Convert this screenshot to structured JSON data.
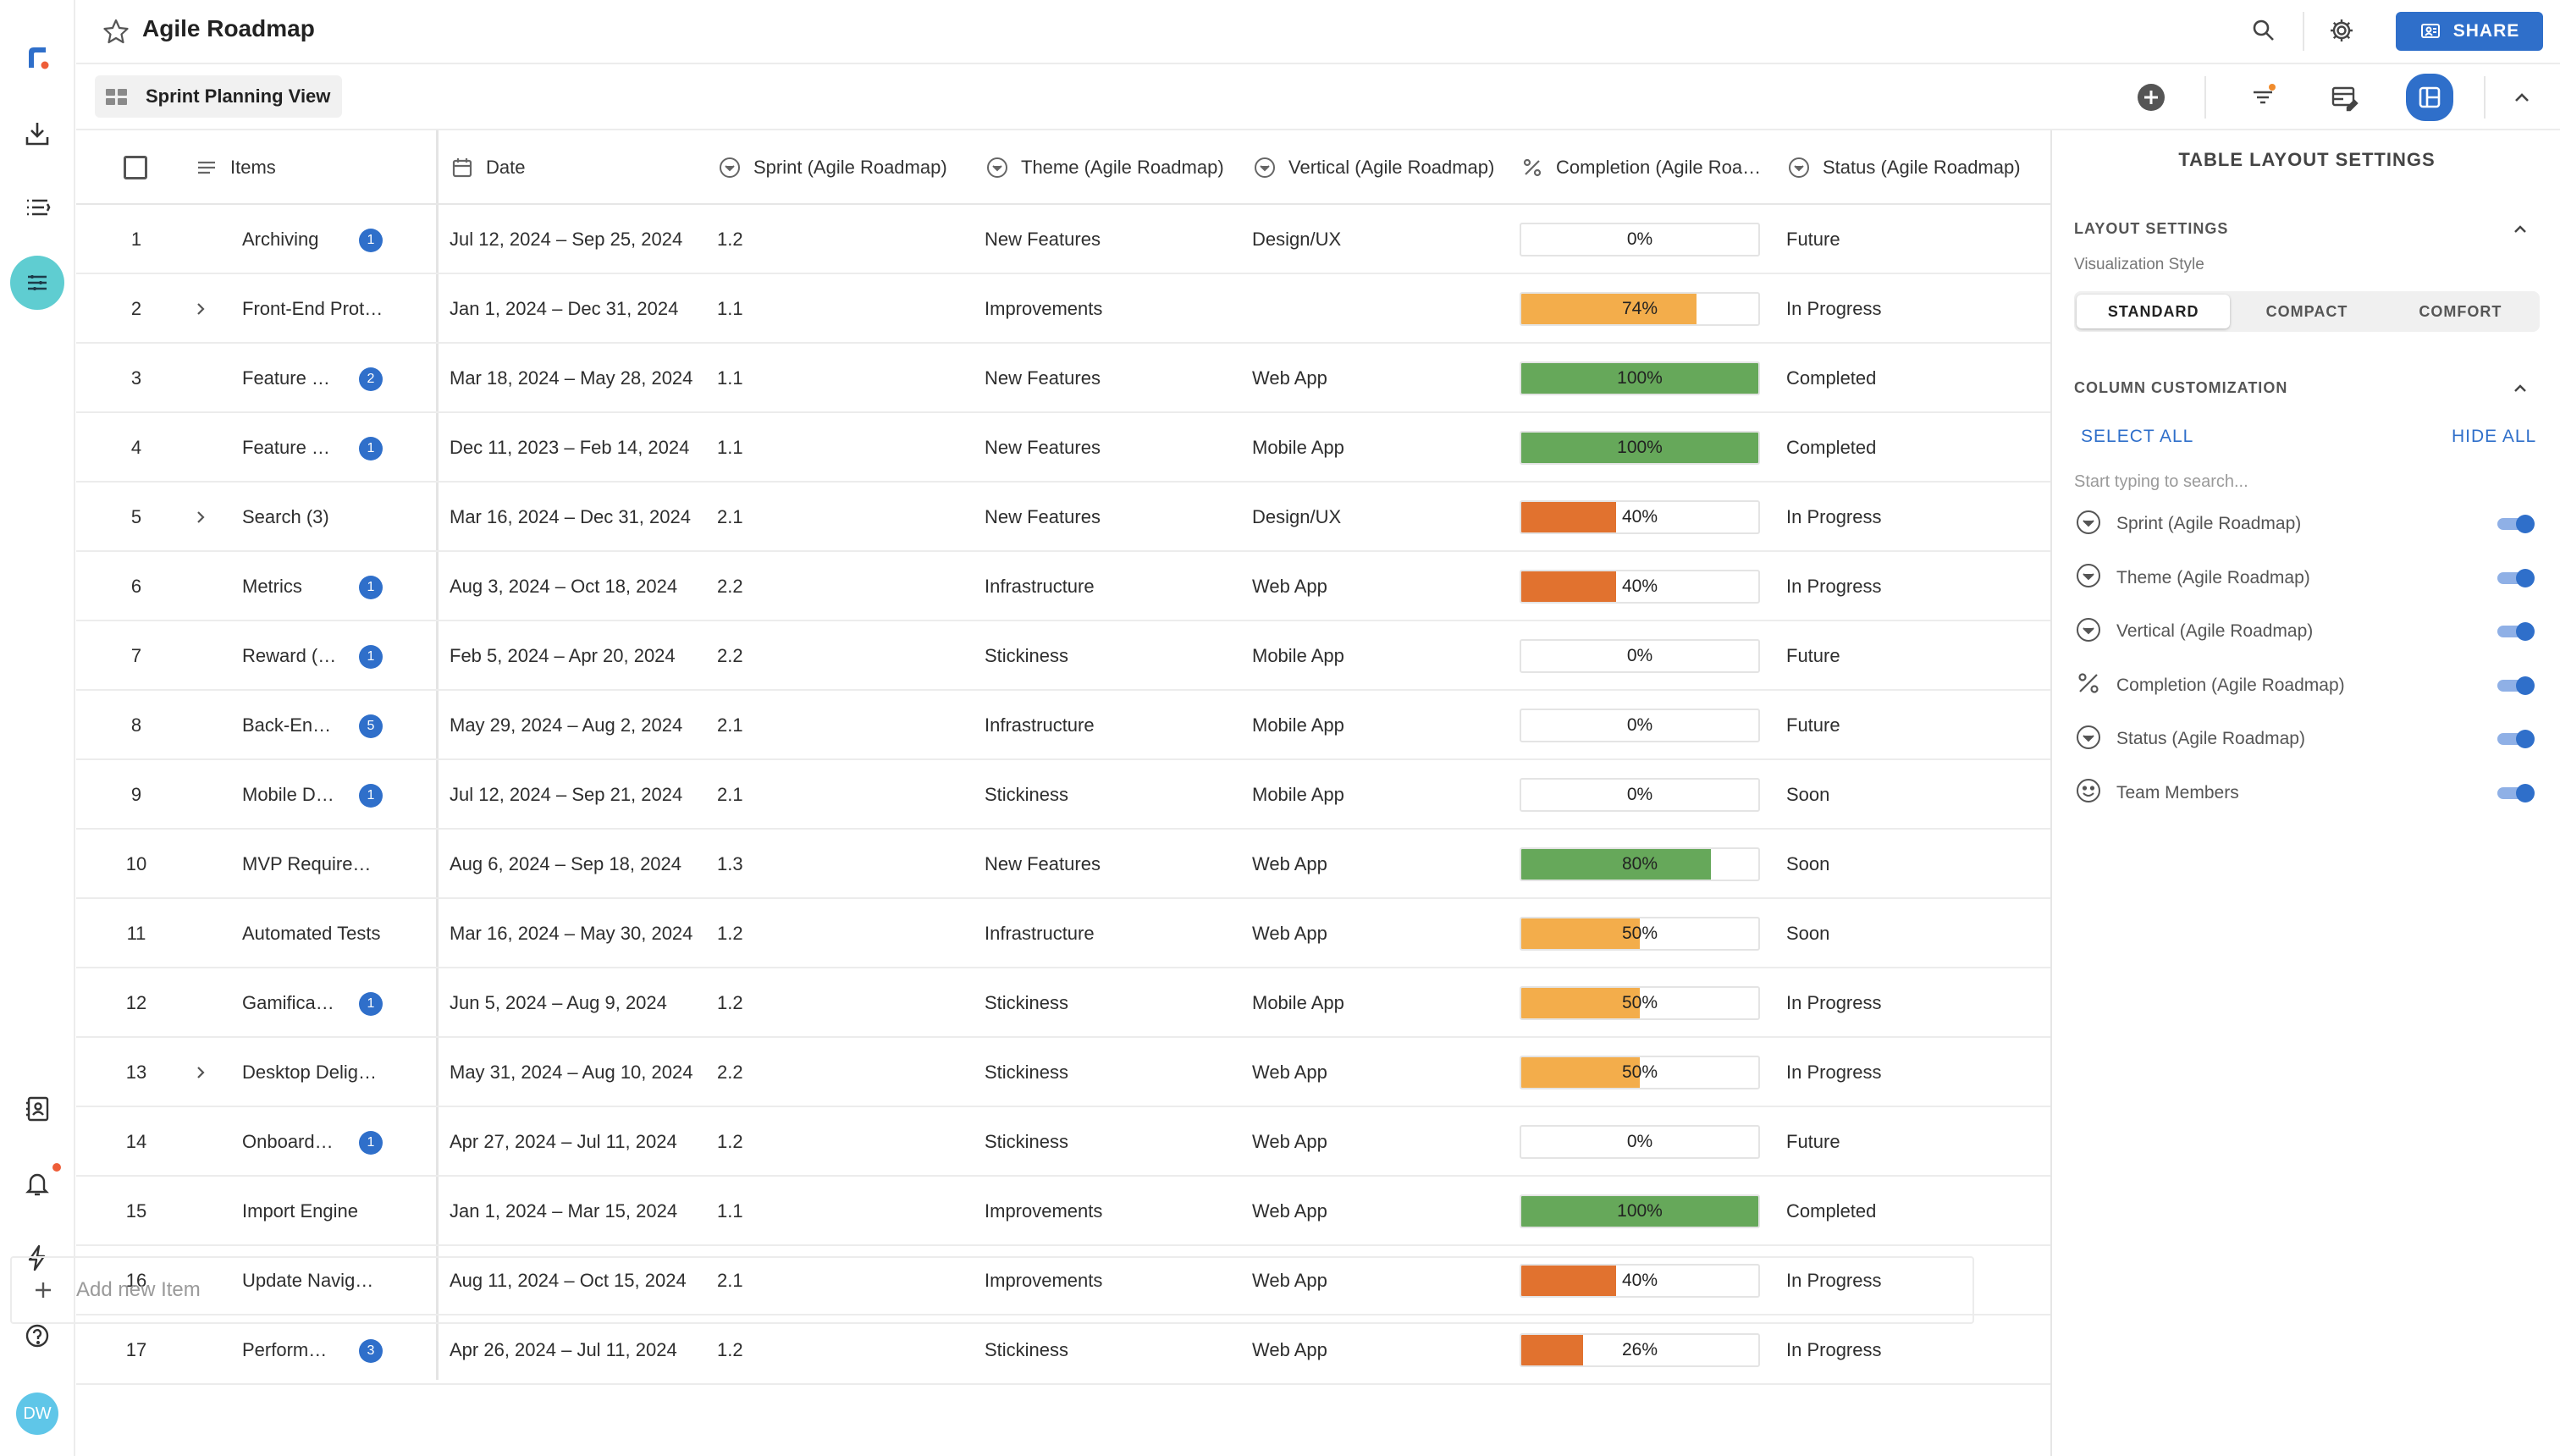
{
  "app": {
    "title": "Agile Roadmap",
    "view_name": "Sprint Planning View",
    "share_label": "SHARE",
    "user_initials": "DW"
  },
  "icons": {
    "rail": [
      "brand-logo-icon",
      "download-icon",
      "list-icon",
      "board-icon",
      "contacts-icon",
      "bell-icon",
      "lightning-icon",
      "help-icon"
    ],
    "header": [
      "star-icon",
      "search-icon",
      "gear-icon",
      "share-icon"
    ],
    "toolbar": [
      "add-icon",
      "filter-icon",
      "table-edit-icon",
      "layout-icon",
      "collapse-icon"
    ]
  },
  "colors": {
    "accent": "#2f6fca",
    "rail_active": "#5fcdd1",
    "bar_green": "#66a85a",
    "bar_orange_light": "#f3ad4b",
    "bar_orange_dark": "#e1722f",
    "notify_dot": "#ee5d38"
  },
  "table": {
    "headers": {
      "items": "Items",
      "date": "Date",
      "sprint": "Sprint (Agile Roadmap)",
      "theme": "Theme (Agile Roadmap)",
      "vertical": "Vertical (Agile Roadmap)",
      "completion": "Completion (Agile Roa…",
      "status": "Status (Agile Roadmap)"
    },
    "rows": [
      {
        "num": "1",
        "name": "Archiving",
        "badge": "1",
        "expand": false,
        "date": "Jul 12, 2024 – Sep 25, 2024",
        "sprint": "1.2",
        "theme": "New Features",
        "vertical": "Design/UX",
        "completion": 0,
        "completion_label": "0%",
        "status": "Future"
      },
      {
        "num": "2",
        "name": "Front-End Prot…",
        "badge": "",
        "expand": true,
        "date": "Jan 1, 2024 – Dec 31, 2024",
        "sprint": "1.1",
        "theme": "Improvements",
        "vertical": "",
        "completion": 74,
        "completion_label": "74%",
        "status": "In Progress"
      },
      {
        "num": "3",
        "name": "Feature …",
        "badge": "2",
        "expand": false,
        "date": "Mar 18, 2024 – May 28, 2024",
        "sprint": "1.1",
        "theme": "New Features",
        "vertical": "Web App",
        "completion": 100,
        "completion_label": "100%",
        "status": "Completed"
      },
      {
        "num": "4",
        "name": "Feature …",
        "badge": "1",
        "expand": false,
        "date": "Dec 11, 2023 – Feb 14, 2024",
        "sprint": "1.1",
        "theme": "New Features",
        "vertical": "Mobile App",
        "completion": 100,
        "completion_label": "100%",
        "status": "Completed"
      },
      {
        "num": "5",
        "name": "Search (3)",
        "badge": "",
        "expand": true,
        "date": "Mar 16, 2024 – Dec 31, 2024",
        "sprint": "2.1",
        "theme": "New Features",
        "vertical": "Design/UX",
        "completion": 40,
        "completion_label": "40%",
        "status": "In Progress"
      },
      {
        "num": "6",
        "name": "Metrics",
        "badge": "1",
        "expand": false,
        "date": "Aug 3, 2024 – Oct 18, 2024",
        "sprint": "2.2",
        "theme": "Infrastructure",
        "vertical": "Web App",
        "completion": 40,
        "completion_label": "40%",
        "status": "In Progress"
      },
      {
        "num": "7",
        "name": "Reward (…",
        "badge": "1",
        "expand": false,
        "date": "Feb 5, 2024 – Apr 20, 2024",
        "sprint": "2.2",
        "theme": "Stickiness",
        "vertical": "Mobile App",
        "completion": 0,
        "completion_label": "0%",
        "status": "Future"
      },
      {
        "num": "8",
        "name": "Back-En…",
        "badge": "5",
        "expand": false,
        "date": "May 29, 2024 – Aug 2, 2024",
        "sprint": "2.1",
        "theme": "Infrastructure",
        "vertical": "Mobile App",
        "completion": 0,
        "completion_label": "0%",
        "status": "Future"
      },
      {
        "num": "9",
        "name": "Mobile D…",
        "badge": "1",
        "expand": false,
        "date": "Jul 12, 2024 – Sep 21, 2024",
        "sprint": "2.1",
        "theme": "Stickiness",
        "vertical": "Mobile App",
        "completion": 0,
        "completion_label": "0%",
        "status": "Soon"
      },
      {
        "num": "10",
        "name": "MVP Require…",
        "badge": "",
        "expand": false,
        "date": "Aug 6, 2024 – Sep 18, 2024",
        "sprint": "1.3",
        "theme": "New Features",
        "vertical": "Web App",
        "completion": 80,
        "completion_label": "80%",
        "status": "Soon"
      },
      {
        "num": "11",
        "name": "Automated Tests",
        "badge": "",
        "expand": false,
        "date": "Mar 16, 2024 – May 30, 2024",
        "sprint": "1.2",
        "theme": "Infrastructure",
        "vertical": "Web App",
        "completion": 50,
        "completion_label": "50%",
        "status": "Soon"
      },
      {
        "num": "12",
        "name": "Gamifica…",
        "badge": "1",
        "expand": false,
        "date": "Jun 5, 2024 – Aug 9, 2024",
        "sprint": "1.2",
        "theme": "Stickiness",
        "vertical": "Mobile App",
        "completion": 50,
        "completion_label": "50%",
        "status": "In Progress"
      },
      {
        "num": "13",
        "name": "Desktop Delig…",
        "badge": "",
        "expand": true,
        "date": "May 31, 2024 – Aug 10, 2024",
        "sprint": "2.2",
        "theme": "Stickiness",
        "vertical": "Web App",
        "completion": 50,
        "completion_label": "50%",
        "status": "In Progress"
      },
      {
        "num": "14",
        "name": "Onboard…",
        "badge": "1",
        "expand": false,
        "date": "Apr 27, 2024 – Jul 11, 2024",
        "sprint": "1.2",
        "theme": "Stickiness",
        "vertical": "Web App",
        "completion": 0,
        "completion_label": "0%",
        "status": "Future"
      },
      {
        "num": "15",
        "name": "Import Engine",
        "badge": "",
        "expand": false,
        "date": "Jan 1, 2024 – Mar 15, 2024",
        "sprint": "1.1",
        "theme": "Improvements",
        "vertical": "Web App",
        "completion": 100,
        "completion_label": "100%",
        "status": "Completed"
      },
      {
        "num": "16",
        "name": "Update Navig…",
        "badge": "",
        "expand": false,
        "date": "Aug 11, 2024 – Oct 15, 2024",
        "sprint": "2.1",
        "theme": "Improvements",
        "vertical": "Web App",
        "completion": 40,
        "completion_label": "40%",
        "status": "In Progress"
      },
      {
        "num": "17",
        "name": "Perform…",
        "badge": "3",
        "expand": false,
        "date": "Apr 26, 2024 – Jul 11, 2024",
        "sprint": "1.2",
        "theme": "Stickiness",
        "vertical": "Web App",
        "completion": 26,
        "completion_label": "26%",
        "status": "In Progress"
      }
    ],
    "add_placeholder": "Add new Item"
  },
  "panel": {
    "title": "TABLE LAYOUT SETTINGS",
    "layout_section": "LAYOUT SETTINGS",
    "viz_label": "Visualization Style",
    "styles": [
      "STANDARD",
      "COMPACT",
      "COMFORT"
    ],
    "selected_style": "STANDARD",
    "column_section": "COLUMN CUSTOMIZATION",
    "select_all": "SELECT ALL",
    "hide_all": "HIDE ALL",
    "search_placeholder": "Start typing to search...",
    "columns": [
      {
        "label": "Sprint (Agile Roadmap)",
        "icon": "dropdown-circle-icon",
        "on": true
      },
      {
        "label": "Theme (Agile Roadmap)",
        "icon": "dropdown-circle-icon",
        "on": true
      },
      {
        "label": "Vertical (Agile Roadmap)",
        "icon": "dropdown-circle-icon",
        "on": true
      },
      {
        "label": "Completion (Agile Roadmap)",
        "icon": "percent-icon",
        "on": true
      },
      {
        "label": "Status (Agile Roadmap)",
        "icon": "dropdown-circle-icon",
        "on": true
      },
      {
        "label": "Team Members",
        "icon": "smiley-icon",
        "on": true
      }
    ]
  }
}
